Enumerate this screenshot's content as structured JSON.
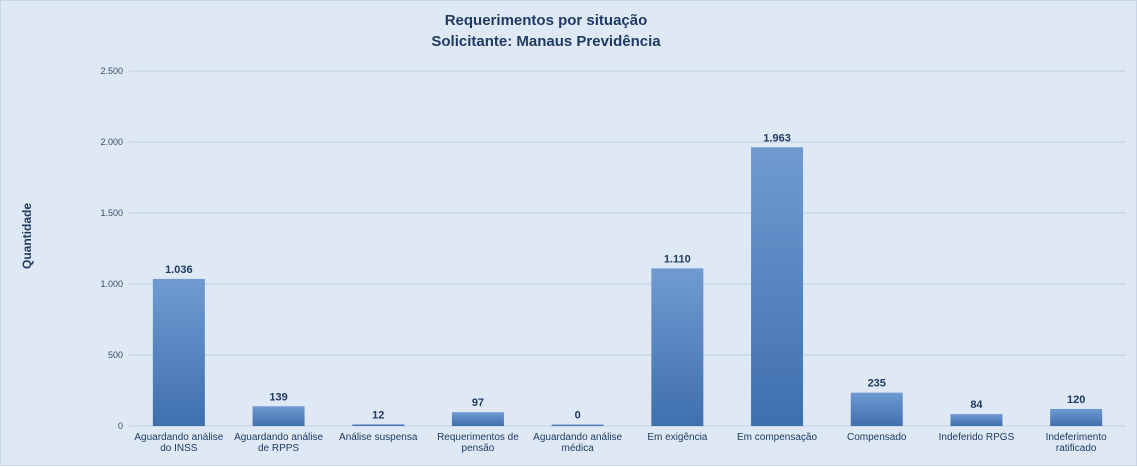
{
  "chart_data": {
    "type": "bar",
    "title": "Requerimentos por situação",
    "subtitle": "Solicitante: Manaus Previdência",
    "ylabel": "Quantidade",
    "xlabel": "",
    "ylim": [
      0,
      2500
    ],
    "yticks": [
      0,
      500,
      1000,
      1500,
      2000,
      2500
    ],
    "ytick_labels": [
      "0",
      "500",
      "1.000",
      "1.500",
      "2.000",
      "2.500"
    ],
    "grid": true,
    "legend": "none",
    "categories": [
      [
        "Aguardando análise",
        "do INSS"
      ],
      [
        "Aguardando análise",
        "de RPPS"
      ],
      [
        "Análise suspensa"
      ],
      [
        "Requerimentos de",
        "pensão"
      ],
      [
        "Aguardando análise",
        "médica"
      ],
      [
        "Em exigência"
      ],
      [
        "Em compensação"
      ],
      [
        "Compensado"
      ],
      [
        "Indeferido RPGS"
      ],
      [
        "Indeferimento",
        "ratificado"
      ]
    ],
    "values": [
      1036,
      139,
      12,
      97,
      0,
      1110,
      1963,
      235,
      84,
      120
    ],
    "value_labels": [
      "1.036",
      "139",
      "12",
      "97",
      "0",
      "1.110",
      "1.963",
      "235",
      "84",
      "120"
    ],
    "bar_color": "#4f7fbd"
  }
}
